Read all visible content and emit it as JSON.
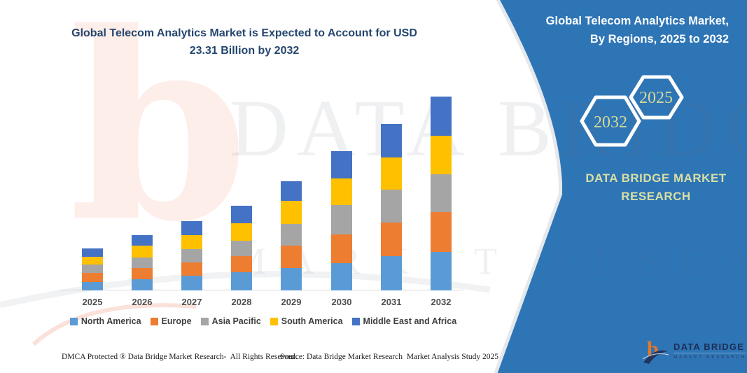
{
  "header": {
    "chart_title_line1": "Global Telecom Analytics Market is Expected to Account for USD",
    "chart_title_line2": "23.31 Billion by 2032"
  },
  "side_panel": {
    "title_line1": "Global Telecom Analytics Market,",
    "title_line2": "By Regions, 2025 to 2032",
    "hex_year_back": "2032",
    "hex_year_front": "2025",
    "brand_text": "DATA BRIDGE MARKET RESEARCH",
    "panel_color": "#2E75B6",
    "accent_text_color": "#D6DB9B"
  },
  "logo": {
    "mark": "b",
    "name": "DATA BRIDGE",
    "tagline": "MARKET RESEARCH"
  },
  "footer": {
    "dmca": "DMCA Protected ® Data Bridge Market Research-  All Rights Reserved.",
    "source": "Source: Data Bridge Market Research  Market Analysis Study 2025"
  },
  "watermark": {
    "letter": "b",
    "row1": "DATA BRIDGE",
    "row2": "MARKET RESEARCH"
  },
  "chart_data": {
    "type": "bar",
    "stacked": true,
    "title": "Global Telecom Analytics Market is Expected to Account for USD 23.31 Billion by 2032",
    "unit": "USD Billion",
    "categories": [
      "2025",
      "2026",
      "2027",
      "2028",
      "2029",
      "2030",
      "2031",
      "2032"
    ],
    "series": [
      {
        "name": "North America",
        "color": "#5B9BD5",
        "values": [
          1.01,
          1.35,
          1.77,
          2.19,
          2.69,
          3.28,
          4.12,
          4.6
        ]
      },
      {
        "name": "Europe",
        "color": "#ED7D31",
        "values": [
          1.09,
          1.35,
          1.6,
          1.94,
          2.69,
          3.45,
          4.04,
          4.8
        ]
      },
      {
        "name": "Asia Pacific",
        "color": "#A5A5A5",
        "values": [
          1.01,
          1.26,
          1.6,
          1.85,
          2.61,
          3.53,
          3.96,
          4.57
        ]
      },
      {
        "name": "South America",
        "color": "#FFC000",
        "values": [
          0.93,
          1.43,
          1.68,
          2.1,
          2.78,
          3.2,
          3.87,
          4.66
        ]
      },
      {
        "name": "Middle East and Africa",
        "color": "#4472C4",
        "values": [
          1.01,
          1.26,
          1.68,
          2.1,
          2.36,
          3.28,
          4.04,
          4.68
        ]
      }
    ],
    "totals": [
      5.05,
      6.65,
      8.33,
      10.18,
      13.13,
      16.74,
      20.03,
      23.31
    ],
    "ylim": [
      0,
      23.31
    ],
    "xlabel": "",
    "ylabel": "",
    "grid": false,
    "y_axis_visible": false,
    "legend_position": "bottom"
  }
}
